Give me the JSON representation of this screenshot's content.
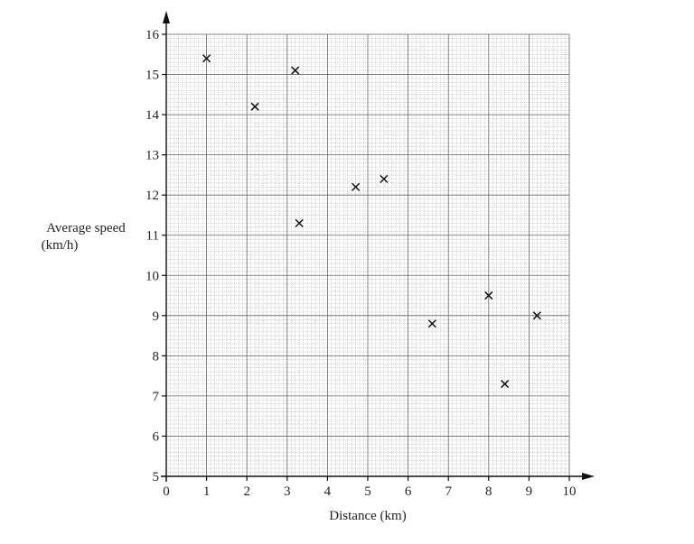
{
  "chart_data": {
    "type": "scatter",
    "title": "",
    "xlabel": "Distance (km)",
    "ylabel_lines": [
      "Average speed",
      "(km/h)"
    ],
    "xlim": [
      0,
      10
    ],
    "ylim": [
      5,
      16
    ],
    "x_ticks": [
      "0",
      "1",
      "2",
      "3",
      "4",
      "5",
      "6",
      "7",
      "8",
      "9",
      "10"
    ],
    "y_ticks": [
      "5",
      "6",
      "7",
      "8",
      "9",
      "10",
      "11",
      "12",
      "13",
      "14",
      "15",
      "16"
    ],
    "grid": true,
    "marker": "x",
    "points": [
      {
        "x": 1.0,
        "y": 15.4
      },
      {
        "x": 2.2,
        "y": 14.2
      },
      {
        "x": 3.2,
        "y": 15.1
      },
      {
        "x": 3.3,
        "y": 11.3
      },
      {
        "x": 4.7,
        "y": 12.2
      },
      {
        "x": 5.4,
        "y": 12.4
      },
      {
        "x": 6.6,
        "y": 8.8
      },
      {
        "x": 8.0,
        "y": 9.5
      },
      {
        "x": 8.4,
        "y": 7.3
      },
      {
        "x": 9.2,
        "y": 9.0
      }
    ]
  }
}
